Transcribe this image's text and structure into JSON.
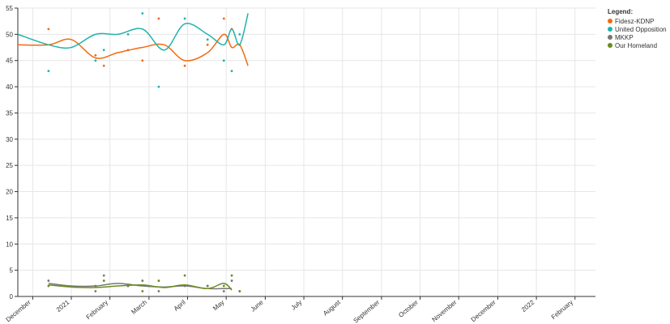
{
  "chart_data": {
    "type": "scatter",
    "legend_title": "Legend:",
    "legend": "top-right",
    "grid": true,
    "xlim": [
      2020.885,
      2022.127
    ],
    "ylim": [
      0,
      55
    ],
    "yticks": [
      0,
      5,
      10,
      15,
      20,
      25,
      30,
      35,
      40,
      45,
      50,
      55
    ],
    "xticks": [
      {
        "value": 2020.917,
        "label": "December"
      },
      2021,
      {
        "value": 2021.083,
        "label": "February"
      },
      {
        "value": 2021.167,
        "label": "March"
      },
      {
        "value": 2021.25,
        "label": "April"
      },
      {
        "value": 2021.333,
        "label": "May"
      },
      {
        "value": 2021.417,
        "label": "June"
      },
      {
        "value": 2021.5,
        "label": "July"
      },
      {
        "value": 2021.583,
        "label": "August"
      },
      {
        "value": 2021.667,
        "label": "September"
      },
      {
        "value": 2021.75,
        "label": "October"
      },
      {
        "value": 2021.833,
        "label": "November"
      },
      {
        "value": 2021.917,
        "label": "December"
      },
      2022,
      {
        "value": 2022.083,
        "label": "February"
      }
    ],
    "x": [
      2020.951,
      2021.052,
      2021.07,
      2021.122,
      2021.153,
      2021.188,
      2021.244,
      2021.293,
      2021.328,
      2021.345,
      2021.362
    ],
    "trend_x": [
      2020.885,
      2020.951,
      2021.0,
      2021.052,
      2021.1,
      2021.153,
      2021.2,
      2021.244,
      2021.293,
      2021.328,
      2021.345,
      2021.362,
      2021.38
    ],
    "series": [
      {
        "name": "Fidesz-KDNP",
        "color": "#f26b0f",
        "values": [
          51,
          46,
          44,
          47,
          45,
          53,
          44,
          48,
          53,
          51,
          48
        ],
        "trend": [
          48,
          48,
          49,
          45.5,
          46.5,
          47.5,
          48,
          45,
          46.5,
          50,
          47.5,
          48,
          44
        ]
      },
      {
        "name": "United Opposition",
        "color": "#1fb3ad",
        "values": [
          43,
          45,
          47,
          50,
          54,
          40,
          53,
          49,
          45,
          43,
          50
        ],
        "trend": [
          50,
          48,
          47.5,
          50,
          50,
          51,
          47,
          52,
          50,
          48,
          51,
          48,
          54
        ]
      },
      {
        "name": "MKKP",
        "color": "#777777",
        "values": [
          3,
          1,
          4,
          2,
          3,
          1,
          2,
          2,
          1,
          3,
          1
        ],
        "trend": [
          null,
          2.5,
          2,
          2,
          2.5,
          2,
          1.8,
          2,
          1.5,
          1.5,
          1.5,
          null,
          null
        ]
      },
      {
        "name": "Our Homeland",
        "color": "#6b8c1f",
        "values": [
          2,
          2,
          3,
          2,
          1,
          3,
          4,
          2,
          2,
          4,
          1
        ],
        "trend": [
          null,
          2.2,
          1.8,
          1.7,
          2,
          2.2,
          1.7,
          2.2,
          1.5,
          2.5,
          1.2,
          null,
          null
        ]
      }
    ]
  }
}
